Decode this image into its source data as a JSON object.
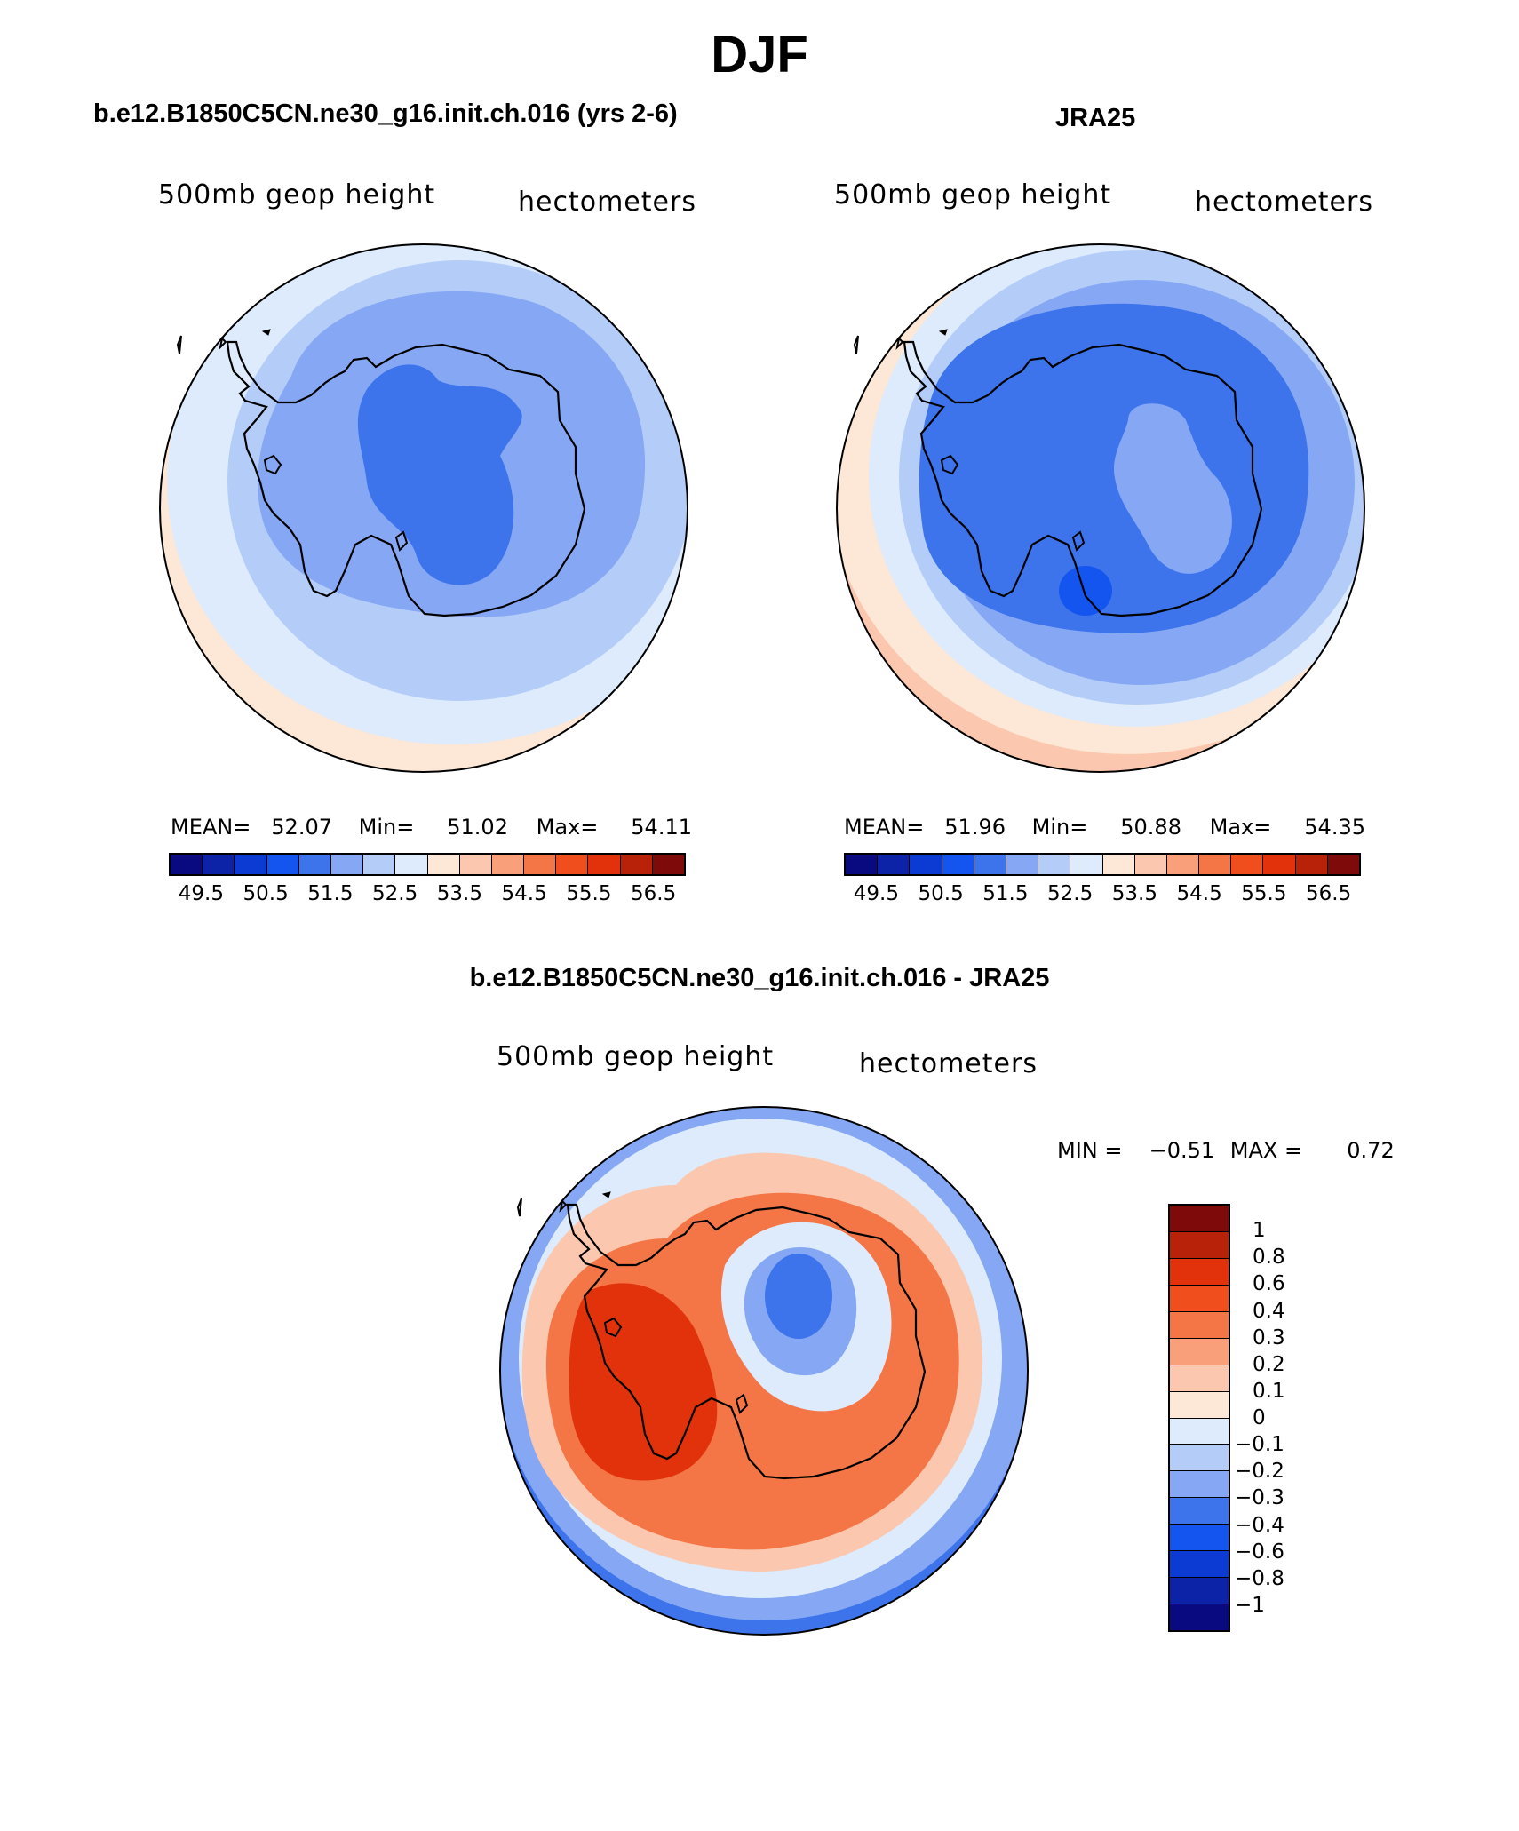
{
  "season": "DJF",
  "panels": {
    "model": {
      "title": "b.e12.B1850C5CN.ne30_g16.init.ch.016 (yrs 2-6)",
      "left_label": "500mb geop height",
      "right_label": "hectometers",
      "stats": {
        "mean_label": "MEAN=",
        "mean": "52.07",
        "min_label": "Min=",
        "min": "51.02",
        "max_label": "Max=",
        "max": "54.11"
      }
    },
    "obs": {
      "title": "JRA25",
      "left_label": "500mb geop height",
      "right_label": "hectometers",
      "stats": {
        "mean_label": "MEAN=",
        "mean": "51.96",
        "min_label": "Min=",
        "min": "50.88",
        "max_label": "Max=",
        "max": "54.35"
      }
    },
    "diff": {
      "title": "b.e12.B1850C5CN.ne30_g16.init.ch.016 - JRA25",
      "left_label": "500mb geop height",
      "right_label": "hectometers",
      "stats": {
        "min_label": "MIN =",
        "min": "−0.51",
        "max_label": "MAX =",
        "max": "0.72"
      }
    }
  },
  "colorbar_main": {
    "colors": [
      "#0a0a80",
      "#0c23a8",
      "#0c3bd4",
      "#1455f0",
      "#3d74ec",
      "#86a8f4",
      "#b4cdf8",
      "#ddebfc",
      "#fde7d6",
      "#fbc7ae",
      "#f9a07a",
      "#f47646",
      "#f04e1c",
      "#e2320c",
      "#b72208",
      "#7e0a0a"
    ],
    "tick_labels": [
      "49.5",
      "50.5",
      "51.5",
      "52.5",
      "53.5",
      "54.5",
      "55.5",
      "56.5"
    ]
  },
  "colorbar_diff": {
    "colors": [
      "#7e0a0a",
      "#b72208",
      "#e2320c",
      "#f04e1c",
      "#f47646",
      "#f9a07a",
      "#fbc7ae",
      "#fde7d6",
      "#ddebfc",
      "#b4cdf8",
      "#86a8f4",
      "#3d74ec",
      "#1455f0",
      "#0c3bd4",
      "#0c23a8",
      "#0a0a80"
    ],
    "tick_labels": [
      "1",
      "0.8",
      "0.6",
      "0.4",
      "0.3",
      "0.2",
      "0.1",
      "0",
      "−0.1",
      "−0.2",
      "−0.3",
      "−0.4",
      "−0.6",
      "−0.8",
      "−1"
    ]
  },
  "map_fill": {
    "model": [
      "#fde7d6",
      "#ddebfc",
      "#b4cdf8",
      "#86a8f4",
      "#3d74ec"
    ],
    "obs": [
      "#fbc7ae",
      "#fde7d6",
      "#ddebfc",
      "#b4cdf8",
      "#86a8f4",
      "#3d74ec",
      "#86a8f4",
      "#1455f0"
    ],
    "diff": [
      "#3d74ec",
      "#86a8f4",
      "#ddebfc",
      "#fbc7ae",
      "#f47646",
      "#e2320c",
      "#ddebfc",
      "#86a8f4",
      "#3d74ec"
    ]
  }
}
